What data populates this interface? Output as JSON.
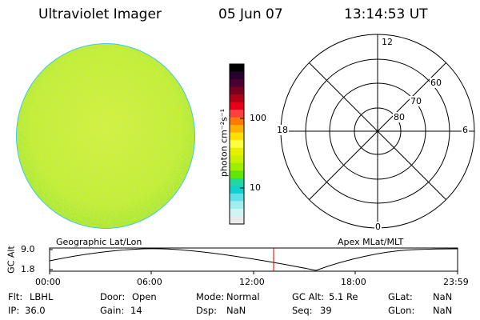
{
  "header": {
    "instrument": "Ultraviolet Imager",
    "date": "05 Jun 07",
    "time": "13:14:53 UT"
  },
  "colorbar": {
    "unit_label": "photon cm⁻²s⁻¹",
    "tick_labels": [
      "100",
      "10"
    ],
    "colors": [
      "#000000",
      "#2a0030",
      "#4a0030",
      "#7a0020",
      "#b00015",
      "#e8001a",
      "#ff4040",
      "#ff7a00",
      "#ffb000",
      "#ffe000",
      "#ffff40",
      "#e8f000",
      "#c8f000",
      "#9ef000",
      "#60e800",
      "#20d8a0",
      "#10d0d0",
      "#60e0e8",
      "#a0eef0",
      "#d0f4f4",
      "#eaeaea"
    ]
  },
  "image_panel": {
    "fill_color": "#c2ee2a"
  },
  "polar_plot": {
    "mlt_labels": {
      "top": "12",
      "left": "18",
      "right": "6",
      "bottom": "0"
    },
    "mlat_labels": [
      "60",
      "70",
      "80"
    ]
  },
  "altitude_plot": {
    "left_title": "Geographic Lat/Lon",
    "right_title": "Apex MLat/MLT",
    "axis_label": "GC Alt",
    "y_ticks": [
      "9.0",
      "1.8"
    ],
    "x_ticks": [
      "00:00",
      "06:00",
      "12:00",
      "18:00",
      "23:59"
    ],
    "marker_color": "#e00000"
  },
  "status": {
    "row1": [
      {
        "label": "Flt:",
        "value": "LBHL"
      },
      {
        "label": "Door:",
        "value": "Open"
      },
      {
        "label": "Mode:",
        "value": "Normal"
      },
      {
        "label": "GC Alt:",
        "value": "5.1 Re"
      },
      {
        "label": "GLat:",
        "value": "NaN"
      }
    ],
    "row2": [
      {
        "label": "IP:",
        "value": "36.0"
      },
      {
        "label": "Gain:",
        "value": "14"
      },
      {
        "label": "Dsp:",
        "value": "NaN"
      },
      {
        "label": "Seq:",
        "value": "39"
      },
      {
        "label": "GLon:",
        "value": "NaN"
      }
    ]
  }
}
